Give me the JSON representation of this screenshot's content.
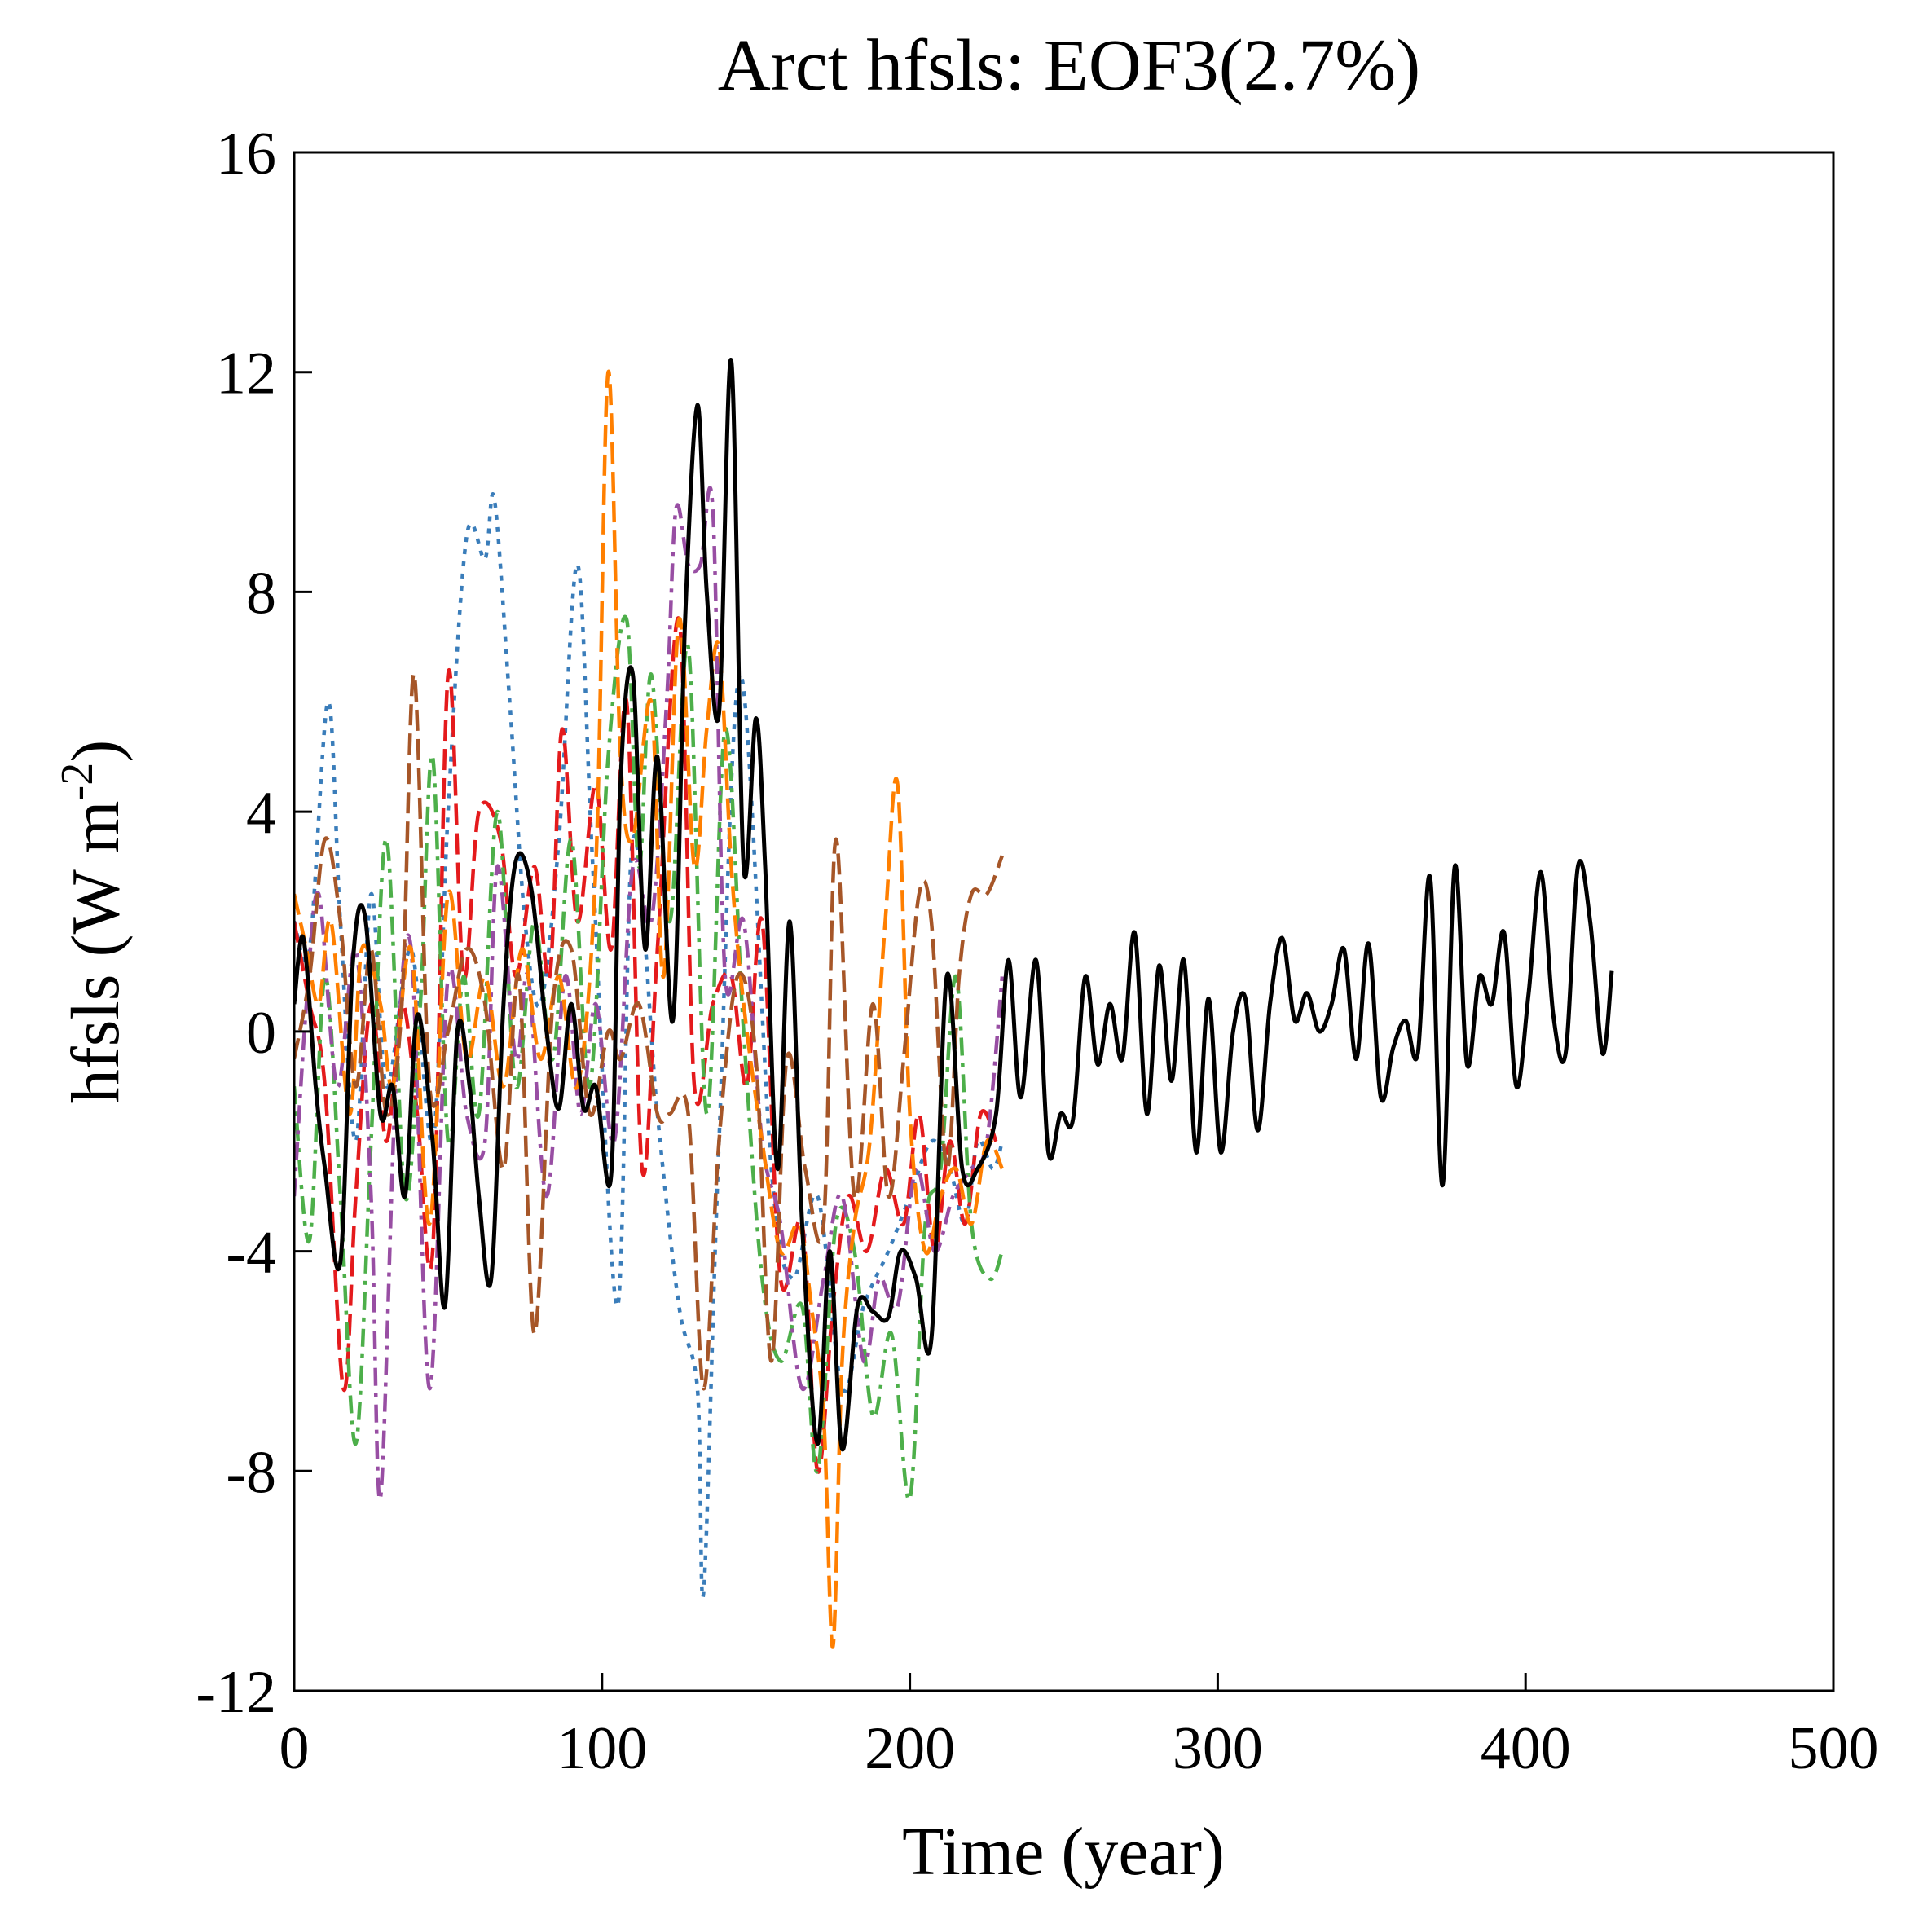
{
  "chart_data": {
    "type": "line",
    "title": "Arct hfsls: EOF3(2.7%)",
    "xlabel": "Time (year)",
    "ylabel": {
      "main": "hfsls (W m",
      "sup": "-2",
      "close": ")"
    },
    "xlim": [
      0,
      500
    ],
    "ylim": [
      -12,
      16
    ],
    "xticks": [
      0,
      100,
      200,
      300,
      400,
      500
    ],
    "yticks": [
      -12,
      -8,
      -4,
      0,
      4,
      8,
      12,
      16
    ],
    "xtick_labels": [
      "0",
      "100",
      "200",
      "300",
      "400",
      "500"
    ],
    "ytick_labels": [
      "-12",
      "-8",
      "-4",
      "0",
      "4",
      "8",
      "12",
      "16"
    ],
    "series": [
      {
        "name": "blue-dotted",
        "color": "#3a7dba",
        "dash": "dotted",
        "x": [
          0,
          5,
          11,
          15,
          20,
          25,
          30,
          38,
          45,
          50,
          56,
          62,
          65,
          70,
          75,
          80,
          86,
          92,
          97,
          105,
          110,
          118,
          125,
          131,
          133,
          138,
          145,
          155,
          162,
          170,
          178,
          185,
          193,
          200,
          207,
          213,
          218,
          222,
          227,
          230
        ],
        "y": [
          2.0,
          1.5,
          6.0,
          2.0,
          -2.0,
          2.5,
          -1.0,
          1.5,
          -2.0,
          4.0,
          9.0,
          8.6,
          9.7,
          6.0,
          2.0,
          0.5,
          3.5,
          8.5,
          3.0,
          -5.0,
          3.5,
          -1.5,
          -5.0,
          -6.5,
          -10.2,
          -2.0,
          6.5,
          -2.5,
          -4.5,
          -3.0,
          -6.5,
          -5.0,
          -4.0,
          -3.0,
          -2.0,
          -2.5,
          -3.5,
          -2.0,
          -2.5,
          -2.0
        ]
      },
      {
        "name": "red-dashed",
        "color": "#e41a1c",
        "dash": "dashed",
        "x": [
          0,
          5,
          10,
          16,
          20,
          25,
          30,
          35,
          40,
          45,
          50,
          55,
          60,
          67,
          72,
          78,
          83,
          87,
          92,
          98,
          103,
          108,
          113,
          118,
          125,
          130,
          136,
          142,
          147,
          152,
          158,
          165,
          170,
          175,
          180,
          186,
          192,
          198,
          203,
          208,
          213,
          218,
          223,
          228
        ],
        "y": [
          2.0,
          0.5,
          -1.0,
          -6.5,
          -3.0,
          0.5,
          -2.0,
          0.5,
          -1.5,
          -4.0,
          6.5,
          1.0,
          4.0,
          3.5,
          1.0,
          3.0,
          1.0,
          5.5,
          2.0,
          4.5,
          1.5,
          6.0,
          -2.5,
          1.5,
          7.5,
          -1.0,
          0.5,
          1.0,
          -1.0,
          2.0,
          -4.5,
          -3.5,
          -8.0,
          -5.0,
          -3.0,
          -4.0,
          -2.5,
          -3.5,
          -1.5,
          -4.0,
          -2.0,
          -3.5,
          -1.5,
          -2.0
        ]
      },
      {
        "name": "green-dashdot",
        "color": "#4daf4a",
        "dash": "dashdot",
        "x": [
          0,
          5,
          10,
          15,
          20,
          25,
          30,
          36,
          41,
          45,
          50,
          55,
          60,
          66,
          72,
          78,
          84,
          90,
          96,
          102,
          108,
          112,
          116,
          122,
          128,
          134,
          140,
          146,
          152,
          158,
          165,
          170,
          176,
          182,
          188,
          194,
          200,
          205,
          210,
          215,
          220,
          226,
          230
        ],
        "y": [
          -1.0,
          -3.8,
          1.0,
          -3.0,
          -7.5,
          -2.0,
          3.5,
          -3.0,
          0.5,
          5.0,
          -2.0,
          1.0,
          -1.5,
          4.0,
          -1.0,
          2.0,
          -0.5,
          3.5,
          -1.0,
          5.0,
          7.5,
          3.0,
          6.5,
          2.0,
          7.0,
          -1.5,
          5.5,
          0.0,
          -4.5,
          -6.0,
          -5.0,
          -8.0,
          -3.5,
          -4.0,
          -7.0,
          -5.5,
          -8.5,
          -3.5,
          -2.5,
          1.0,
          -3.5,
          -4.5,
          -4.0
        ]
      },
      {
        "name": "purple-dashdot",
        "color": "#984ea3",
        "dash": "dashdot",
        "x": [
          0,
          4,
          8,
          14,
          20,
          25,
          28,
          33,
          38,
          44,
          50,
          56,
          62,
          66,
          72,
          76,
          82,
          88,
          93,
          98,
          104,
          110,
          116,
          121,
          124,
          128,
          132,
          136,
          140,
          146,
          152,
          158,
          165,
          172,
          178,
          185,
          190,
          196,
          202,
          208,
          214,
          220,
          225,
          230
        ],
        "y": [
          -3.0,
          0.5,
          2.5,
          -1.0,
          1.5,
          -3.0,
          -8.5,
          -1.0,
          1.5,
          -6.5,
          1.0,
          -1.5,
          -2.0,
          3.0,
          -0.5,
          1.0,
          -3.0,
          1.0,
          -1.5,
          0.5,
          -2.0,
          3.0,
          2.0,
          6.0,
          9.5,
          8.5,
          8.5,
          9.5,
          1.0,
          2.0,
          -2.0,
          -3.5,
          -6.5,
          -4.5,
          -3.0,
          -6.0,
          -4.5,
          -5.0,
          -2.5,
          -4.0,
          -3.0,
          -2.5,
          -2.0,
          1.0
        ]
      },
      {
        "name": "orange-dashed",
        "color": "#ff7f00",
        "dash": "dashed",
        "x": [
          0,
          4,
          8,
          12,
          18,
          22,
          28,
          32,
          38,
          44,
          50,
          56,
          62,
          68,
          74,
          80,
          86,
          92,
          98,
          102,
          106,
          110,
          116,
          120,
          125,
          130,
          134,
          138,
          142,
          146,
          152,
          158,
          164,
          168,
          172,
          175,
          178,
          182,
          187,
          192,
          196,
          200,
          205,
          210,
          215,
          220,
          225,
          230
        ],
        "y": [
          2.5,
          1.5,
          0.5,
          2.0,
          -1.5,
          1.5,
          0.5,
          -1.0,
          1.5,
          -3.5,
          2.5,
          -0.5,
          1.0,
          -1.0,
          1.5,
          -0.5,
          1.0,
          -1.0,
          3.0,
          12.0,
          5.0,
          3.5,
          6.0,
          1.0,
          7.5,
          3.0,
          5.5,
          7.0,
          3.0,
          0.5,
          -2.0,
          -4.0,
          -3.5,
          -5.0,
          -7.0,
          -11.2,
          -6.0,
          -3.5,
          -2.0,
          2.0,
          4.5,
          -1.5,
          -4.0,
          -3.0,
          -2.5,
          -3.5,
          -2.0,
          -2.5
        ]
      },
      {
        "name": "brown-dashed",
        "color": "#a65628",
        "dash": "dashed",
        "x": [
          0,
          5,
          10,
          15,
          20,
          25,
          30,
          35,
          39,
          44,
          50,
          56,
          62,
          68,
          73,
          78,
          84,
          90,
          96,
          102,
          106,
          112,
          118,
          122,
          128,
          133,
          138,
          144,
          150,
          155,
          160,
          166,
          172,
          176,
          182,
          188,
          193,
          198,
          203,
          207,
          212,
          216,
          220,
          225,
          230
        ],
        "y": [
          -0.5,
          1.0,
          3.5,
          2.0,
          -1.0,
          1.5,
          -1.5,
          0.5,
          6.5,
          -1.0,
          0.0,
          1.5,
          0.5,
          -2.5,
          1.0,
          -5.5,
          0.5,
          1.5,
          -1.5,
          0.0,
          -0.5,
          0.5,
          -1.5,
          -1.5,
          -1.5,
          -6.5,
          -2.0,
          1.0,
          -0.5,
          -6.0,
          -0.5,
          -2.5,
          -3.5,
          3.5,
          -3.0,
          0.5,
          -3.0,
          -0.5,
          2.5,
          2.0,
          -2.5,
          1.0,
          2.5,
          2.5,
          3.2
        ]
      },
      {
        "name": "black-solid",
        "color": "#000000",
        "dash": "solid",
        "x": [
          0,
          3,
          7,
          10,
          15,
          19,
          23,
          28,
          32,
          36,
          40,
          45,
          49,
          53,
          57,
          60,
          64,
          68,
          72,
          77,
          82,
          86,
          90,
          94,
          98,
          103,
          106,
          110,
          114,
          118,
          123,
          127,
          131,
          134,
          138,
          142,
          146,
          150,
          153,
          157,
          161,
          165,
          170,
          174,
          178,
          183,
          188,
          193,
          197,
          202,
          207,
          212,
          217,
          222,
          228,
          232,
          236,
          241,
          245,
          249,
          253,
          257,
          261,
          265,
          269,
          273,
          277,
          281,
          285,
          289,
          293,
          297,
          301,
          305,
          309,
          313,
          317,
          321,
          325,
          329,
          333,
          337,
          341,
          345,
          349,
          353,
          357,
          361,
          365,
          369,
          373,
          377,
          381,
          385,
          389,
          393,
          397,
          401,
          405,
          409,
          413,
          417,
          421,
          425,
          428
        ],
        "y": [
          0.5,
          1.7,
          -1.0,
          -2.5,
          -4.2,
          1.2,
          2.1,
          -1.5,
          -1.0,
          -3.0,
          0.3,
          -2.0,
          -5.0,
          0.0,
          -1.0,
          -3.0,
          -4.5,
          0.5,
          3.1,
          2.6,
          0.0,
          -1.4,
          0.5,
          -1.4,
          -1.0,
          -2.6,
          4.5,
          6.5,
          1.5,
          5.0,
          0.2,
          7.5,
          11.4,
          8.0,
          5.8,
          12.2,
          3.0,
          5.7,
          3.0,
          -2.5,
          2.0,
          -3.5,
          -7.5,
          -4.0,
          -7.6,
          -5.0,
          -5.1,
          -5.2,
          -4.0,
          -4.5,
          -5.6,
          1.0,
          -2.5,
          -2.5,
          -1.5,
          1.3,
          -1.2,
          1.3,
          -2.2,
          -1.5,
          -1.6,
          1.0,
          -0.6,
          0.5,
          -0.5,
          1.8,
          -1.5,
          1.2,
          -0.9,
          1.3,
          -2.2,
          0.6,
          -2.2,
          0.0,
          0.6,
          -1.8,
          0.5,
          1.7,
          0.2,
          0.7,
          0.0,
          0.5,
          1.5,
          -0.5,
          1.6,
          -1.2,
          -0.3,
          0.2,
          -0.4,
          2.8,
          -2.8,
          3.0,
          -0.6,
          1.0,
          0.5,
          1.8,
          -1.0,
          0.7,
          2.9,
          0.3,
          -0.4,
          3.0,
          2.0,
          -0.4,
          1.1
        ]
      }
    ]
  }
}
